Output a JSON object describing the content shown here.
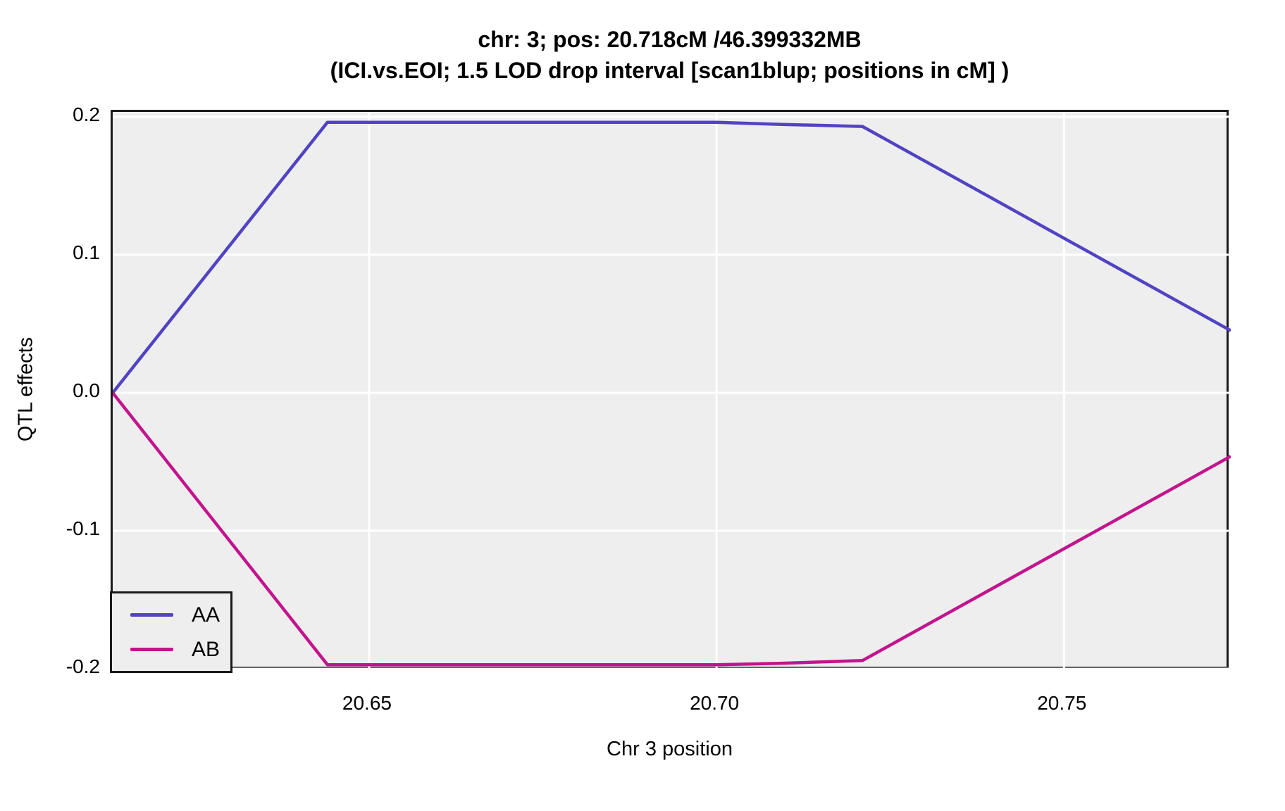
{
  "header": {
    "title": "chr: 3; pos: 20.718cM /46.399332MB",
    "subtitle": "(ICI.vs.EOI; 1.5 LOD drop interval [scan1blup; positions in cM] )"
  },
  "axes": {
    "x_label": "Chr 3 position",
    "y_label": "QTL effects",
    "x_tick_labels": [
      "20.65",
      "20.70",
      "20.75"
    ],
    "y_tick_labels": [
      "0.2",
      "0.1",
      "0.0",
      "-0.1",
      "-0.2"
    ]
  },
  "legend": {
    "entries": [
      {
        "label": "AA",
        "color": "#5143c1"
      },
      {
        "label": "AB",
        "color": "#c3148e"
      }
    ]
  },
  "colors": {
    "panel_background": "#eeeeee",
    "grid": "#ffffff",
    "panel_border": "#1a1a1a",
    "series_aa": "#5143c1",
    "series_ab": "#c3148e"
  },
  "chart_data": {
    "type": "line",
    "title": "chr: 3; pos: 20.718cM /46.399332MB",
    "subtitle": "(ICI.vs.EOI; 1.5 LOD drop interval [scan1blup; positions in cM] )",
    "xlabel": "Chr 3 position",
    "ylabel": "QTL effects",
    "xlim": [
      20.6131,
      20.774
    ],
    "ylim": [
      -0.2015,
      0.2035
    ],
    "x_ticks": [
      20.65,
      20.7,
      20.75
    ],
    "y_ticks": [
      0.2,
      0.1,
      0.0,
      -0.1,
      -0.2
    ],
    "grid": true,
    "legend_position": "bottom-left",
    "series": [
      {
        "name": "AA",
        "color": "#5143c1",
        "x": [
          20.6131,
          20.644,
          20.7,
          20.709,
          20.721,
          20.774
        ],
        "y": [
          0.0,
          0.196,
          0.196,
          0.1945,
          0.193,
          0.045
        ]
      },
      {
        "name": "AB",
        "color": "#c3148e",
        "x": [
          20.6131,
          20.644,
          20.7,
          20.709,
          20.721,
          20.774
        ],
        "y": [
          0.0,
          -0.197,
          -0.197,
          -0.196,
          -0.194,
          -0.046
        ]
      }
    ]
  }
}
